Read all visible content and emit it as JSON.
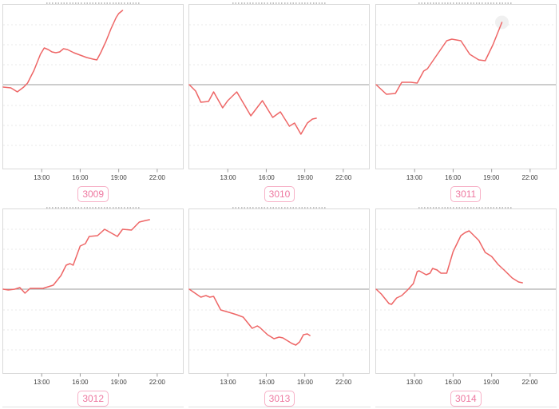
{
  "colors": {
    "line": "#ee6666",
    "zero_line": "#9b9b9b",
    "grid_line": "#eaeaea",
    "chart_border": "#d9d9d9",
    "axis_text": "#3c3c3c",
    "tick_mark": "#999999",
    "badge_text": "#ee78a0",
    "badge_border": "#f7b1c7",
    "badge_bg": "#ffffff",
    "highlight_halo": "#eeeeee"
  },
  "axis": {
    "x_ticks": [
      "13:00",
      "16:00",
      "19:00",
      "22:00"
    ],
    "x_tick_hours": [
      13,
      16,
      19,
      22
    ],
    "x_range_hours": [
      10,
      24
    ]
  },
  "chart_data": [
    {
      "type": "line",
      "label": "3009",
      "legend": "none",
      "grid": "dotted-horizontal",
      "x_unit": "time-of-day-hours",
      "x_range": [
        10,
        24
      ],
      "x_ticks": [
        "13:00",
        "16:00",
        "19:00",
        "22:00"
      ],
      "x_tick_hours": [
        13,
        16,
        19,
        22
      ],
      "y_axis_labels": "none",
      "y_zero_baseline": true,
      "highlight_last_point": false,
      "points": [
        [
          10.0,
          -3
        ],
        [
          10.6,
          -4
        ],
        [
          11.1,
          -9
        ],
        [
          11.6,
          -3
        ],
        [
          11.9,
          2
        ],
        [
          12.4,
          18
        ],
        [
          12.9,
          38
        ],
        [
          13.2,
          46
        ],
        [
          13.5,
          44
        ],
        [
          13.8,
          41
        ],
        [
          14.1,
          40
        ],
        [
          14.4,
          41
        ],
        [
          14.7,
          45
        ],
        [
          15.0,
          44
        ],
        [
          15.5,
          40
        ],
        [
          16.0,
          37
        ],
        [
          16.5,
          34
        ],
        [
          17.0,
          32
        ],
        [
          17.3,
          31
        ],
        [
          17.6,
          40
        ],
        [
          18.0,
          54
        ],
        [
          18.4,
          70
        ],
        [
          18.8,
          84
        ],
        [
          19.0,
          89
        ],
        [
          19.3,
          93
        ]
      ]
    },
    {
      "type": "line",
      "label": "3010",
      "legend": "none",
      "grid": "dotted-horizontal",
      "x_unit": "time-of-day-hours",
      "x_range": [
        10,
        24
      ],
      "x_ticks": [
        "13:00",
        "16:00",
        "19:00",
        "22:00"
      ],
      "x_tick_hours": [
        13,
        16,
        19,
        22
      ],
      "y_axis_labels": "none",
      "y_zero_baseline": true,
      "highlight_last_point": false,
      "points": [
        [
          10.0,
          0
        ],
        [
          10.5,
          -8
        ],
        [
          10.9,
          -22
        ],
        [
          11.5,
          -21
        ],
        [
          11.9,
          -9
        ],
        [
          12.6,
          -29
        ],
        [
          13.0,
          -20
        ],
        [
          13.7,
          -9
        ],
        [
          14.8,
          -39
        ],
        [
          15.7,
          -20
        ],
        [
          16.5,
          -41
        ],
        [
          17.1,
          -34
        ],
        [
          17.8,
          -52
        ],
        [
          18.2,
          -48
        ],
        [
          18.7,
          -62
        ],
        [
          19.2,
          -48
        ],
        [
          19.6,
          -43
        ],
        [
          19.9,
          -42
        ]
      ]
    },
    {
      "type": "line",
      "label": "3011",
      "legend": "none",
      "grid": "dotted-horizontal",
      "x_unit": "time-of-day-hours",
      "x_range": [
        10,
        24
      ],
      "x_ticks": [
        "13:00",
        "16:00",
        "19:00",
        "22:00"
      ],
      "x_tick_hours": [
        13,
        16,
        19,
        22
      ],
      "y_axis_labels": "none",
      "y_zero_baseline": true,
      "highlight_last_point": true,
      "points": [
        [
          10.0,
          0
        ],
        [
          10.8,
          -12
        ],
        [
          11.5,
          -11
        ],
        [
          12.0,
          3
        ],
        [
          12.7,
          3
        ],
        [
          13.2,
          2
        ],
        [
          13.7,
          17
        ],
        [
          14.0,
          20
        ],
        [
          14.6,
          34
        ],
        [
          15.5,
          55
        ],
        [
          15.9,
          57
        ],
        [
          16.6,
          55
        ],
        [
          17.3,
          38
        ],
        [
          18.0,
          31
        ],
        [
          18.5,
          30
        ],
        [
          19.1,
          50
        ],
        [
          19.8,
          78
        ]
      ]
    },
    {
      "type": "line",
      "label": "3012",
      "legend": "none",
      "grid": "dotted-horizontal",
      "x_unit": "time-of-day-hours",
      "x_range": [
        10,
        24
      ],
      "x_ticks": [
        "13:00",
        "16:00",
        "19:00",
        "22:00"
      ],
      "x_tick_hours": [
        13,
        16,
        19,
        22
      ],
      "y_axis_labels": "none",
      "y_zero_baseline": true,
      "highlight_last_point": false,
      "points": [
        [
          10.0,
          0
        ],
        [
          10.4,
          -1
        ],
        [
          10.9,
          0
        ],
        [
          11.3,
          2
        ],
        [
          11.7,
          -5
        ],
        [
          12.1,
          1
        ],
        [
          12.6,
          1
        ],
        [
          13.1,
          1
        ],
        [
          13.9,
          5
        ],
        [
          14.5,
          17
        ],
        [
          14.9,
          30
        ],
        [
          15.2,
          32
        ],
        [
          15.45,
          30
        ],
        [
          16.0,
          54
        ],
        [
          16.4,
          57
        ],
        [
          16.7,
          66
        ],
        [
          17.35,
          67
        ],
        [
          17.9,
          75
        ],
        [
          18.9,
          66
        ],
        [
          19.3,
          75
        ],
        [
          20.0,
          74
        ],
        [
          20.6,
          84
        ],
        [
          21.1,
          86
        ],
        [
          21.4,
          87
        ]
      ]
    },
    {
      "type": "line",
      "label": "3013",
      "legend": "none",
      "grid": "dotted-horizontal",
      "x_unit": "time-of-day-hours",
      "x_range": [
        10,
        24
      ],
      "x_ticks": [
        "13:00",
        "16:00",
        "19:00",
        "22:00"
      ],
      "x_tick_hours": [
        13,
        16,
        19,
        22
      ],
      "y_axis_labels": "none",
      "y_zero_baseline": true,
      "highlight_last_point": false,
      "points": [
        [
          10.0,
          0
        ],
        [
          10.9,
          -10
        ],
        [
          11.3,
          -8
        ],
        [
          11.6,
          -10
        ],
        [
          11.9,
          -9
        ],
        [
          12.45,
          -26
        ],
        [
          13.1,
          -29
        ],
        [
          13.7,
          -32
        ],
        [
          14.2,
          -35
        ],
        [
          14.9,
          -49
        ],
        [
          15.3,
          -46
        ],
        [
          15.5,
          -48
        ],
        [
          16.1,
          -57
        ],
        [
          16.6,
          -62
        ],
        [
          17.0,
          -60
        ],
        [
          17.3,
          -61
        ],
        [
          17.6,
          -64
        ],
        [
          18.0,
          -68
        ],
        [
          18.3,
          -70
        ],
        [
          18.6,
          -66
        ],
        [
          18.9,
          -57
        ],
        [
          19.2,
          -56
        ],
        [
          19.4,
          -58
        ]
      ]
    },
    {
      "type": "line",
      "label": "3014",
      "legend": "none",
      "grid": "dotted-horizontal",
      "x_unit": "time-of-day-hours",
      "x_range": [
        10,
        24
      ],
      "x_ticks": [
        "13:00",
        "16:00",
        "19:00",
        "22:00"
      ],
      "x_tick_hours": [
        13,
        16,
        19,
        22
      ],
      "y_axis_labels": "none",
      "y_zero_baseline": true,
      "highlight_last_point": false,
      "points": [
        [
          10.0,
          0
        ],
        [
          10.4,
          -6
        ],
        [
          11.0,
          -18
        ],
        [
          11.2,
          -19
        ],
        [
          11.6,
          -11
        ],
        [
          12.0,
          -8
        ],
        [
          12.45,
          -1
        ],
        [
          12.9,
          7
        ],
        [
          13.2,
          22
        ],
        [
          13.35,
          23
        ],
        [
          13.9,
          18
        ],
        [
          14.2,
          20
        ],
        [
          14.4,
          26
        ],
        [
          14.75,
          24
        ],
        [
          15.05,
          20
        ],
        [
          15.5,
          20
        ],
        [
          16.0,
          47
        ],
        [
          16.6,
          67
        ],
        [
          16.95,
          71
        ],
        [
          17.25,
          73
        ],
        [
          18.0,
          61
        ],
        [
          18.5,
          46
        ],
        [
          19.0,
          41
        ],
        [
          19.5,
          31
        ],
        [
          20.1,
          22
        ],
        [
          20.6,
          14
        ],
        [
          21.1,
          9
        ],
        [
          21.4,
          8
        ]
      ]
    }
  ]
}
